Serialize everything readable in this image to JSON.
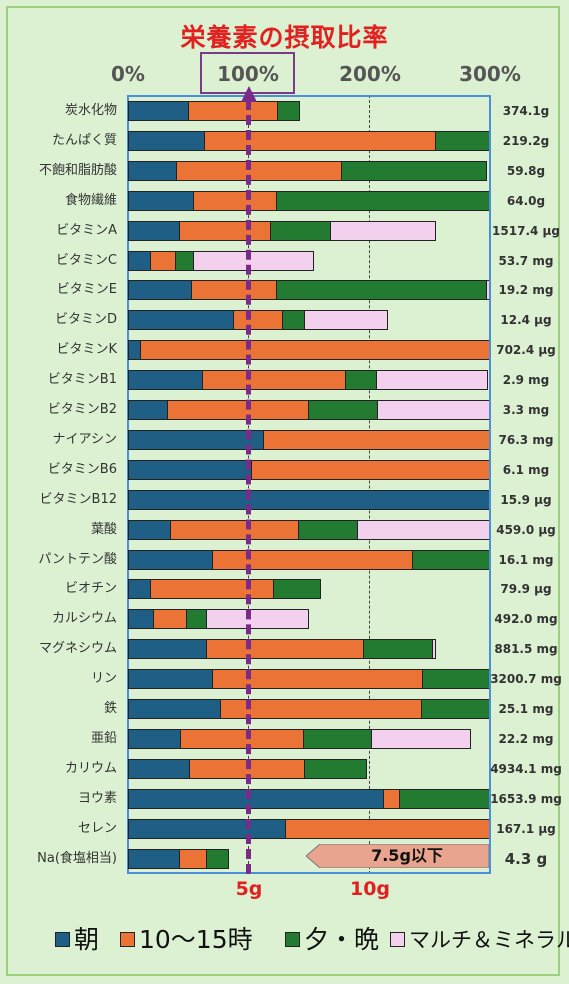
{
  "chart_data": {
    "type": "bar",
    "orientation": "horizontal",
    "stacked": true,
    "title": "栄養素の摂取比率",
    "x_ticks": [
      "0%",
      "100%",
      "200%",
      "300%"
    ],
    "xlim": [
      0,
      300
    ],
    "gridlines_at": [
      100,
      200
    ],
    "reference_line": 100,
    "colors": {
      "朝": "#1f5f85",
      "10〜15時": "#ec7336",
      "夕・晩": "#237a31",
      "マルチ＆ミネラル": "#f2d0ee"
    },
    "series_names": [
      "朝",
      "10〜15時",
      "夕・晩",
      "マルチ＆ミネラル"
    ],
    "categories": [
      {
        "label": "炭水化物",
        "total": "374.1g",
        "values": [
          50,
          74,
          19,
          0
        ]
      },
      {
        "label": "たんぱく質",
        "total": "219.2g",
        "values": [
          63,
          192,
          48,
          0
        ]
      },
      {
        "label": "不飽和脂肪酸",
        "total": "59.8g",
        "values": [
          40,
          137,
          121,
          0
        ]
      },
      {
        "label": "食物繊維",
        "total": "64.0g",
        "values": [
          54,
          69,
          180,
          0
        ]
      },
      {
        "label": "ビタミンA",
        "total": "1517.4 μg",
        "values": [
          42,
          76,
          50,
          88
        ]
      },
      {
        "label": "ビタミンC",
        "total": "53.7 mg",
        "values": [
          18,
          21,
          15,
          100
        ]
      },
      {
        "label": "ビタミンE",
        "total": "19.2 mg",
        "values": [
          52,
          71,
          174,
          5
        ]
      },
      {
        "label": "ビタミンD",
        "total": "12.4 μg",
        "values": [
          87,
          41,
          18,
          70
        ]
      },
      {
        "label": "ビタミンK",
        "total": "702.4 μg",
        "values": [
          10,
          350,
          0,
          0
        ]
      },
      {
        "label": "ビタミンB1",
        "total": "2.9 mg",
        "values": [
          61,
          119,
          26,
          93
        ]
      },
      {
        "label": "ビタミンB2",
        "total": "3.3 mg",
        "values": [
          32,
          117,
          58,
          95
        ]
      },
      {
        "label": "ナイアシン",
        "total": "76.3 mg",
        "values": [
          112,
          250,
          0,
          0
        ]
      },
      {
        "label": "ビタミンB6",
        "total": "6.1 mg",
        "values": [
          102,
          250,
          0,
          0
        ]
      },
      {
        "label": "ビタミンB12",
        "total": "15.9 μg",
        "values": [
          320,
          0,
          0,
          0
        ]
      },
      {
        "label": "葉酸",
        "total": "459.0 μg",
        "values": [
          35,
          106,
          49,
          120
        ]
      },
      {
        "label": "パントテン酸",
        "total": "16.1 mg",
        "values": [
          70,
          166,
          78,
          0
        ]
      },
      {
        "label": "ビオチン",
        "total": "79.9 μg",
        "values": [
          18,
          102,
          40,
          0
        ]
      },
      {
        "label": "カルシウム",
        "total": "492.0 mg",
        "values": [
          21,
          27,
          17,
          85
        ]
      },
      {
        "label": "マグネシウム",
        "total": "881.5 mg",
        "values": [
          65,
          130,
          57,
          4
        ]
      },
      {
        "label": "リン",
        "total": "3200.7 mg",
        "values": [
          70,
          174,
          100,
          0
        ]
      },
      {
        "label": "鉄",
        "total": "25.1 mg",
        "values": [
          76,
          167,
          90,
          0
        ]
      },
      {
        "label": "亜鉛",
        "total": "22.2 mg",
        "values": [
          43,
          102,
          57,
          83
        ]
      },
      {
        "label": "カリウム",
        "total": "4934.1 mg",
        "values": [
          51,
          95,
          52,
          0
        ]
      },
      {
        "label": "ヨウ素",
        "total": "1653.9 mg",
        "values": [
          212,
          13,
          100,
          0
        ]
      },
      {
        "label": "セレン",
        "total": "167.1 μg",
        "values": [
          130,
          250,
          0,
          0
        ]
      },
      {
        "label": "Na(食塩相当)",
        "total": "4.3 g",
        "values": [
          42,
          23,
          19,
          0
        ]
      }
    ],
    "sodium_limit_label": "7.5g以下",
    "sodium_axis_labels": [
      "5g",
      "10g"
    ]
  },
  "legend": [
    "朝",
    "10〜15時",
    "夕・晩",
    "マルチ＆ミネラル"
  ]
}
